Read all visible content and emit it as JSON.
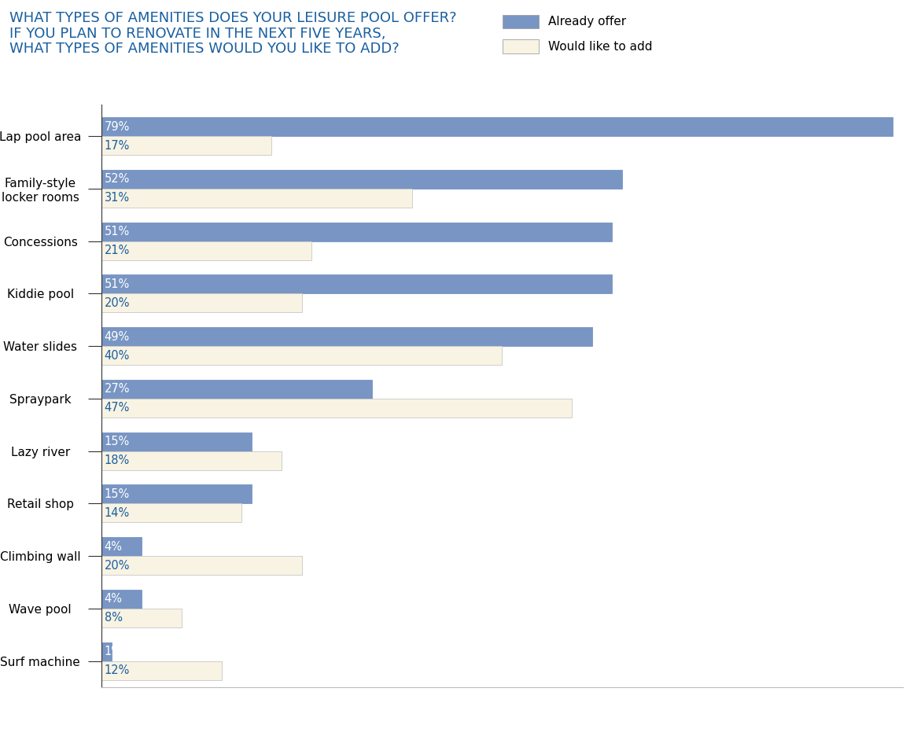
{
  "chart_data": {
    "type": "bar",
    "orientation": "horizontal",
    "title": "WHAT TYPES OF AMENITIES DOES YOUR LEISURE POOL OFFER?\nIF YOU PLAN TO RENOVATE IN THE NEXT FIVE YEARS,\nWHAT TYPES OF AMENITIES WOULD YOU LIKE TO ADD?",
    "categories": [
      "Lap pool area",
      "Family-style\nlocker rooms",
      "Concessions",
      "Kiddie pool",
      "Water slides",
      "Spraypark",
      "Lazy river",
      "Retail shop",
      "Climbing wall",
      "Wave pool",
      "Surf machine"
    ],
    "series": [
      {
        "name": "Already offer",
        "color": "#7895c3",
        "values": [
          79,
          52,
          51,
          51,
          49,
          27,
          15,
          15,
          4,
          4,
          1
        ],
        "value_labels": [
          "79%",
          "52%",
          "51%",
          "51%",
          "49%",
          "27%",
          "15%",
          "15%",
          "4%",
          "4%",
          "1%"
        ]
      },
      {
        "name": "Would like to add",
        "color": "#f8f3e3",
        "values": [
          17,
          31,
          21,
          20,
          40,
          47,
          18,
          14,
          20,
          8,
          12
        ],
        "value_labels": [
          "17%",
          "31%",
          "21%",
          "20%",
          "40%",
          "47%",
          "18%",
          "14%",
          "20%",
          "8%",
          "12%"
        ]
      }
    ],
    "xlim": [
      0,
      80
    ],
    "xticks": [],
    "tick_labels": "y",
    "data_labels": true,
    "legend": "upper right",
    "grid": false
  }
}
